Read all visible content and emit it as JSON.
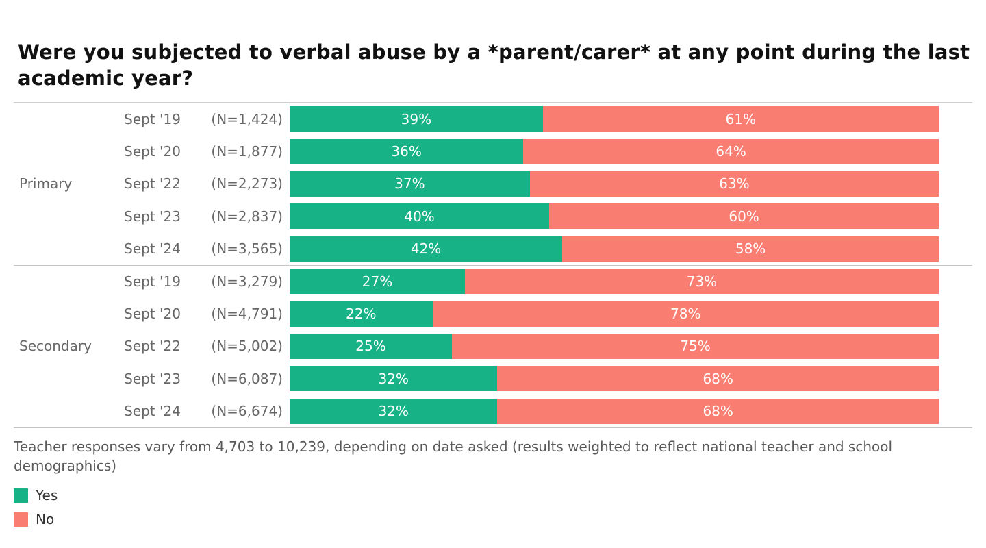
{
  "title": "Were you subjected to verbal abuse by a *parent/carer* at any point during the last academic year?",
  "footnote": "Teacher responses vary from 4,703 to 10,239, depending on date asked (results weighted to reflect national teacher and school demographics)",
  "legend": {
    "yes_label": "Yes",
    "no_label": "No"
  },
  "colors": {
    "yes": "#17b286",
    "no": "#fa7d71",
    "label_gray": "#676767",
    "grid_line": "#c4c4c4"
  },
  "chart_data": {
    "type": "bar",
    "stacked": true,
    "orientation": "horizontal",
    "unit": "percent",
    "axis_range": [
      0,
      100
    ],
    "grid": false,
    "legend_position": "bottom-left",
    "series_names": [
      "Yes",
      "No"
    ],
    "groups": [
      {
        "label": "Primary",
        "rows": [
          {
            "period": "Sept '19",
            "n_label": "(N=1,424)",
            "yes": 39,
            "no": 61,
            "yes_label": "39%",
            "no_label": "61%"
          },
          {
            "period": "Sept '20",
            "n_label": "(N=1,877)",
            "yes": 36,
            "no": 64,
            "yes_label": "36%",
            "no_label": "64%"
          },
          {
            "period": "Sept '22",
            "n_label": "(N=2,273)",
            "yes": 37,
            "no": 63,
            "yes_label": "37%",
            "no_label": "63%"
          },
          {
            "period": "Sept '23",
            "n_label": "(N=2,837)",
            "yes": 40,
            "no": 60,
            "yes_label": "40%",
            "no_label": "60%"
          },
          {
            "period": "Sept '24",
            "n_label": "(N=3,565)",
            "yes": 42,
            "no": 58,
            "yes_label": "42%",
            "no_label": "58%"
          }
        ]
      },
      {
        "label": "Secondary",
        "rows": [
          {
            "period": "Sept '19",
            "n_label": "(N=3,279)",
            "yes": 27,
            "no": 73,
            "yes_label": "27%",
            "no_label": "73%"
          },
          {
            "period": "Sept '20",
            "n_label": "(N=4,791)",
            "yes": 22,
            "no": 78,
            "yes_label": "22%",
            "no_label": "78%"
          },
          {
            "period": "Sept '22",
            "n_label": "(N=5,002)",
            "yes": 25,
            "no": 75,
            "yes_label": "25%",
            "no_label": "75%"
          },
          {
            "period": "Sept '23",
            "n_label": "(N=6,087)",
            "yes": 32,
            "no": 68,
            "yes_label": "32%",
            "no_label": "68%"
          },
          {
            "period": "Sept '24",
            "n_label": "(N=6,674)",
            "yes": 32,
            "no": 68,
            "yes_label": "32%",
            "no_label": "68%"
          }
        ]
      }
    ]
  }
}
